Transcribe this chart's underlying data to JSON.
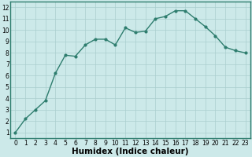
{
  "x": [
    0,
    1,
    2,
    3,
    4,
    5,
    6,
    7,
    8,
    9,
    10,
    11,
    12,
    13,
    14,
    15,
    16,
    17,
    18,
    19,
    20,
    21,
    22,
    23
  ],
  "y": [
    1.0,
    2.2,
    3.0,
    3.8,
    6.2,
    7.8,
    7.7,
    8.7,
    9.2,
    9.2,
    8.7,
    10.2,
    9.8,
    9.9,
    11.0,
    11.2,
    11.7,
    11.7,
    11.0,
    10.3,
    9.5,
    8.5,
    8.2,
    8.0
  ],
  "line_color": "#2e7d6e",
  "marker": "o",
  "marker_size": 2.0,
  "line_width": 1.0,
  "bg_color": "#cce9e9",
  "grid_color": "#aacece",
  "xlabel": "Humidex (Indice chaleur)",
  "xlim": [
    -0.5,
    23.5
  ],
  "ylim": [
    0.5,
    12.5
  ],
  "yticks": [
    1,
    2,
    3,
    4,
    5,
    6,
    7,
    8,
    9,
    10,
    11,
    12
  ],
  "xticks": [
    0,
    1,
    2,
    3,
    4,
    5,
    6,
    7,
    8,
    9,
    10,
    11,
    12,
    13,
    14,
    15,
    16,
    17,
    18,
    19,
    20,
    21,
    22,
    23
  ],
  "tick_label_fontsize": 5.5,
  "xlabel_fontsize": 7.5
}
